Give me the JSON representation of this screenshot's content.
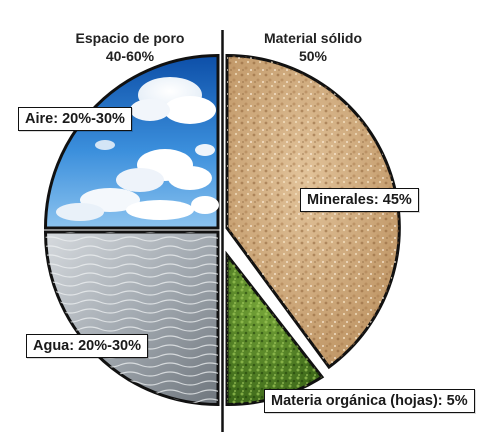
{
  "pore_space": {
    "title": "Espacio de poro",
    "value": "40-60%"
  },
  "solid_material": {
    "title": "Material sólido",
    "value": "50%"
  },
  "segments": {
    "air": {
      "label": "Aire: 20%-30%",
      "color": "#2f78c8"
    },
    "water": {
      "label": "Agua: 20%-30%",
      "color": "#a9b0b6"
    },
    "minerals": {
      "label": "Minerales: 45%",
      "color": "#c9a273"
    },
    "organic": {
      "label": "Materia orgánica (hojas): 5%",
      "color": "#4a7a1e"
    }
  },
  "chart_data": {
    "type": "pie",
    "categories": [
      "Aire",
      "Agua",
      "Minerales",
      "Materia orgánica (hojas)"
    ],
    "values": [
      25,
      25,
      45,
      5
    ],
    "value_labels": [
      "20%-30%",
      "20%-30%",
      "45%",
      "5%"
    ],
    "groups": [
      {
        "name": "Espacio de poro",
        "value": "40-60%",
        "members": [
          "Aire",
          "Agua"
        ]
      },
      {
        "name": "Material sólido",
        "value": "50%",
        "members": [
          "Minerales",
          "Materia orgánica (hojas)"
        ]
      }
    ]
  }
}
